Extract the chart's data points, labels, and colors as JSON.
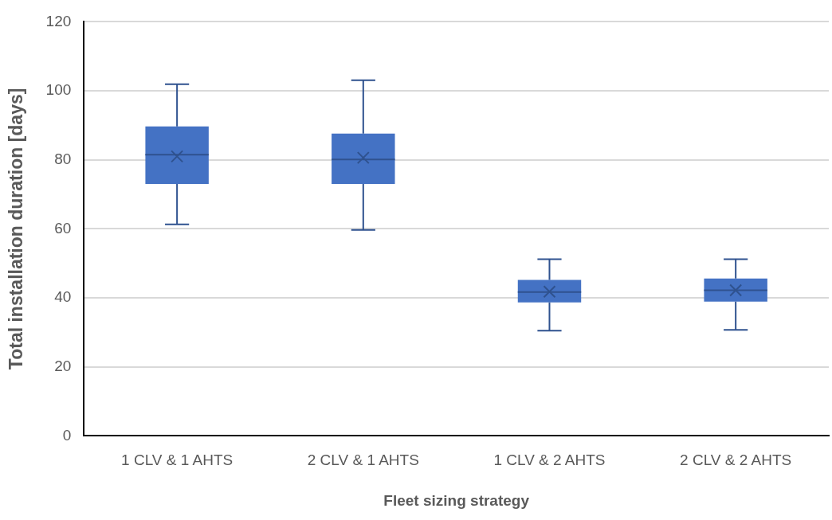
{
  "chart_data": {
    "type": "box",
    "xlabel": "Fleet sizing strategy",
    "ylabel": "Total installation duration [days]",
    "categories": [
      "1 CLV & 1 AHTS",
      "2 CLV & 1 AHTS",
      "1 CLV & 2 AHTS",
      "2 CLV & 2 AHTS"
    ],
    "color": "#4472c4",
    "boxes": [
      {
        "low": 61.3,
        "q1": 73.0,
        "median": 81.5,
        "q3": 89.7,
        "high": 101.9,
        "mean": 81.0
      },
      {
        "low": 59.7,
        "q1": 73.0,
        "median": 80.1,
        "q3": 87.6,
        "high": 103.1,
        "mean": 80.6
      },
      {
        "low": 30.5,
        "q1": 38.7,
        "median": 41.7,
        "q3": 45.2,
        "high": 51.2,
        "mean": 41.8
      },
      {
        "low": 30.7,
        "q1": 38.9,
        "median": 42.2,
        "q3": 45.6,
        "high": 51.2,
        "mean": 42.2
      }
    ],
    "ylim": [
      0,
      120
    ],
    "yticks": [
      0,
      20,
      40,
      60,
      80,
      100,
      120
    ],
    "grid": "y",
    "legend": false
  }
}
